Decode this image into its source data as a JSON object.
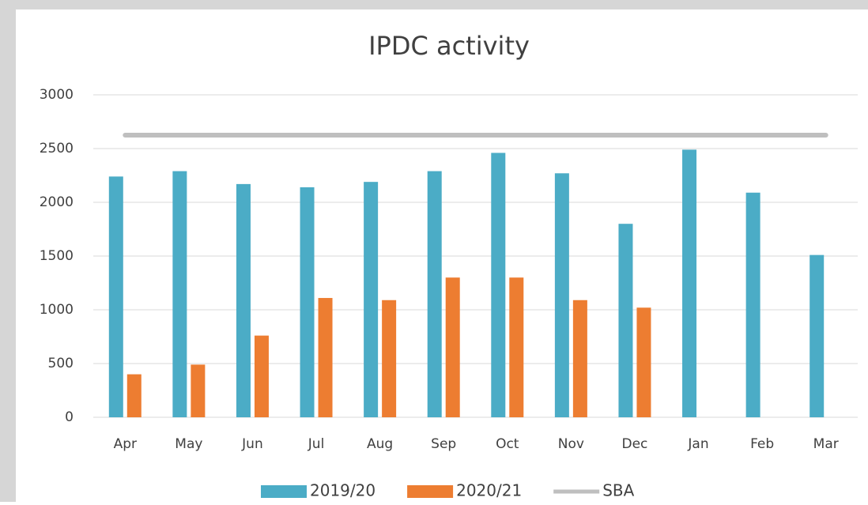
{
  "chart_data": {
    "type": "bar",
    "title": "IPDC activity",
    "categories": [
      "Apr",
      "May",
      "Jun",
      "Jul",
      "Aug",
      "Sep",
      "Oct",
      "Nov",
      "Dec",
      "Jan",
      "Feb",
      "Mar"
    ],
    "series": [
      {
        "name": "2019/20",
        "color": "#4bacc6",
        "values": [
          2240,
          2290,
          2170,
          2140,
          2190,
          2290,
          2460,
          2270,
          1800,
          2490,
          2090,
          1510
        ]
      },
      {
        "name": "2020/21",
        "color": "#ed7d31",
        "values": [
          400,
          490,
          760,
          1110,
          1090,
          1300,
          1300,
          1090,
          1020,
          null,
          null,
          null
        ]
      },
      {
        "name": "SBA",
        "color": "#bfbfbf",
        "type": "line",
        "values": [
          2625,
          2625,
          2625,
          2625,
          2625,
          2625,
          2625,
          2625,
          2625,
          2625,
          2625,
          2625
        ]
      }
    ],
    "ylim": [
      0,
      3000
    ],
    "yticks": [
      0,
      500,
      1000,
      1500,
      2000,
      2500,
      3000
    ],
    "grid": true,
    "legend": "bottom"
  }
}
